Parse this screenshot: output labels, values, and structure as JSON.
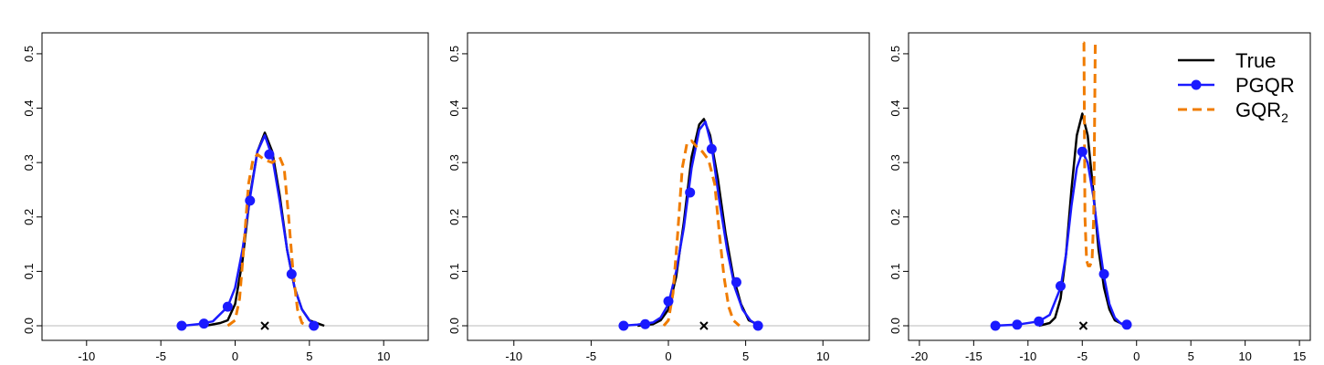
{
  "chart_data": [
    {
      "type": "line",
      "xlim": [
        -13,
        13
      ],
      "ylim": [
        0,
        0.52
      ],
      "xticks": [
        -10,
        -5,
        0,
        5,
        10
      ],
      "yticks": [
        0.0,
        0.1,
        0.2,
        0.3,
        0.4,
        0.5
      ],
      "xtick_labels": [
        "-10",
        "-5",
        "0",
        "5",
        "10"
      ],
      "ytick_labels": [
        "0.0",
        "0.1",
        "0.2",
        "0.3",
        "0.4",
        "0.5"
      ],
      "marker_x": 2.0,
      "series": [
        {
          "key": "true",
          "x": [
            -2,
            -1,
            -0.5,
            0,
            0.5,
            1,
            1.5,
            2,
            2.5,
            3,
            3.5,
            4,
            4.5,
            5,
            6
          ],
          "y": [
            0.0,
            0.005,
            0.01,
            0.04,
            0.12,
            0.24,
            0.32,
            0.355,
            0.32,
            0.24,
            0.14,
            0.07,
            0.03,
            0.01,
            0.0
          ]
        },
        {
          "key": "pgqr",
          "x": [
            -3.5,
            -2.5,
            -1.5,
            -0.5,
            0,
            0.5,
            1,
            1.5,
            2,
            2.5,
            3,
            3.5,
            4,
            4.5,
            5,
            5.4
          ],
          "y": [
            0.0,
            0.003,
            0.008,
            0.035,
            0.07,
            0.14,
            0.235,
            0.32,
            0.35,
            0.31,
            0.23,
            0.14,
            0.07,
            0.03,
            0.01,
            0.0
          ]
        },
        {
          "key": "gqr",
          "x": [
            -0.5,
            0,
            0.3,
            0.6,
            0.9,
            1.2,
            1.5,
            2,
            2.5,
            3,
            3.3,
            3.6,
            3.9,
            4.2,
            4.5,
            5
          ],
          "y": [
            0.0,
            0.01,
            0.05,
            0.15,
            0.26,
            0.305,
            0.315,
            0.305,
            0.3,
            0.31,
            0.29,
            0.2,
            0.1,
            0.03,
            0.005,
            0.0
          ]
        }
      ],
      "pgqr_markers": {
        "x": [
          -3.6,
          -2.1,
          -0.5,
          1.0,
          2.3,
          3.8,
          5.3
        ],
        "y": [
          0.0,
          0.004,
          0.035,
          0.23,
          0.315,
          0.095,
          0.0
        ]
      }
    },
    {
      "type": "line",
      "xlim": [
        -13,
        13
      ],
      "ylim": [
        0,
        0.52
      ],
      "xticks": [
        -10,
        -5,
        0,
        5,
        10
      ],
      "yticks": [
        0.0,
        0.1,
        0.2,
        0.3,
        0.4,
        0.5
      ],
      "xtick_labels": [
        "-10",
        "-5",
        "0",
        "5",
        "10"
      ],
      "ytick_labels": [
        "0.0",
        "0.1",
        "0.2",
        "0.3",
        "0.4",
        "0.5"
      ],
      "marker_x": 2.3,
      "series": [
        {
          "key": "true",
          "x": [
            -2,
            -1,
            -0.5,
            0,
            0.5,
            1,
            1.5,
            2,
            2.3,
            2.7,
            3.2,
            3.7,
            4.2,
            4.7,
            5.2,
            6
          ],
          "y": [
            0.0,
            0.003,
            0.01,
            0.03,
            0.09,
            0.19,
            0.31,
            0.37,
            0.38,
            0.35,
            0.27,
            0.17,
            0.09,
            0.04,
            0.01,
            0.0
          ]
        },
        {
          "key": "pgqr",
          "x": [
            -3,
            -2,
            -1,
            -0.5,
            0,
            0.5,
            1,
            1.5,
            2,
            2.4,
            2.8,
            3.3,
            3.8,
            4.3,
            4.8,
            5.3,
            5.8
          ],
          "y": [
            0.0,
            0.002,
            0.006,
            0.015,
            0.04,
            0.1,
            0.18,
            0.29,
            0.36,
            0.375,
            0.33,
            0.23,
            0.14,
            0.07,
            0.03,
            0.01,
            0.0
          ]
        },
        {
          "key": "gqr",
          "x": [
            -0.3,
            0,
            0.3,
            0.6,
            0.9,
            1.2,
            1.5,
            1.8,
            2.2,
            2.6,
            3,
            3.3,
            3.6,
            3.9,
            4.2,
            4.6
          ],
          "y": [
            0.0,
            0.01,
            0.06,
            0.17,
            0.29,
            0.335,
            0.34,
            0.33,
            0.32,
            0.305,
            0.26,
            0.17,
            0.09,
            0.035,
            0.01,
            0.0
          ]
        }
      ],
      "pgqr_markers": {
        "x": [
          -2.9,
          -1.5,
          0.0,
          1.4,
          2.8,
          4.4,
          5.8
        ],
        "y": [
          0.0,
          0.003,
          0.045,
          0.245,
          0.325,
          0.08,
          0.0
        ]
      }
    },
    {
      "type": "line",
      "xlim": [
        -21,
        16
      ],
      "ylim": [
        0,
        0.52
      ],
      "xticks": [
        -20,
        -15,
        -10,
        -5,
        0,
        5,
        10,
        15
      ],
      "yticks": [
        0.0,
        0.1,
        0.2,
        0.3,
        0.4,
        0.5
      ],
      "xtick_labels": [
        "-20",
        "-15",
        "-10",
        "-5",
        "0",
        "5",
        "10",
        "15"
      ],
      "ytick_labels": [
        "0.0",
        "0.1",
        "0.2",
        "0.3",
        "0.4",
        "0.5"
      ],
      "marker_x": -4.9,
      "series": [
        {
          "key": "true",
          "x": [
            -9,
            -8,
            -7.5,
            -7,
            -6.5,
            -6,
            -5.5,
            -5,
            -4.5,
            -4,
            -3.5,
            -3,
            -2.5,
            -2,
            -1
          ],
          "y": [
            0.0,
            0.005,
            0.015,
            0.05,
            0.13,
            0.25,
            0.35,
            0.39,
            0.35,
            0.25,
            0.14,
            0.07,
            0.03,
            0.01,
            0.0
          ]
        },
        {
          "key": "pgqr",
          "x": [
            -13.2,
            -11,
            -9,
            -8,
            -7,
            -6.5,
            -6,
            -5.5,
            -5,
            -4.5,
            -4,
            -3.5,
            -3,
            -2.5,
            -2,
            -1.5,
            -1
          ],
          "y": [
            0.0,
            0.002,
            0.008,
            0.02,
            0.07,
            0.13,
            0.22,
            0.29,
            0.32,
            0.3,
            0.24,
            0.16,
            0.09,
            0.04,
            0.015,
            0.005,
            0.0
          ]
        },
        {
          "key": "gqr",
          "x": [
            -4.9,
            -4.85,
            -4.75,
            -4.6,
            -4.45,
            -4.3,
            -4.1,
            -3.95,
            -3.85,
            -3.8,
            -3.75
          ],
          "y": [
            0.52,
            0.52,
            0.2,
            0.12,
            0.11,
            0.11,
            0.12,
            0.2,
            0.4,
            0.52,
            0.52
          ]
        }
      ],
      "pgqr_markers": {
        "x": [
          -13.0,
          -11.0,
          -9.0,
          -7.0,
          -5.0,
          -3.0,
          -0.9
        ],
        "y": [
          0.0,
          0.002,
          0.008,
          0.073,
          0.32,
          0.095,
          0.002
        ]
      }
    }
  ],
  "legend": {
    "entries": [
      {
        "key": "true",
        "label": "True",
        "sub": "",
        "color": "#000000"
      },
      {
        "key": "pgqr",
        "label": "PGQR",
        "sub": "",
        "color": "#1a1aff"
      },
      {
        "key": "gqr",
        "label": "GQR",
        "sub": "2",
        "color": "#f07c00"
      }
    ]
  },
  "colors": {
    "true": "#000000",
    "pgqr": "#1a1aff",
    "gqr": "#f07c00",
    "baseline": "#bbbbbb"
  }
}
